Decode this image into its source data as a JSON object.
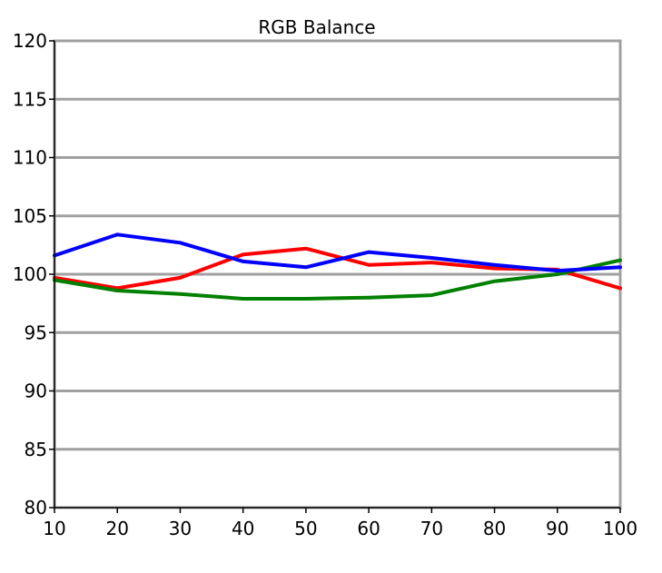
{
  "chart_data": {
    "type": "line",
    "title": "RGB Balance",
    "xlabel": "",
    "ylabel": "",
    "x": [
      10,
      20,
      30,
      40,
      50,
      60,
      70,
      80,
      90,
      100
    ],
    "xlim": [
      10,
      100
    ],
    "ylim": [
      80,
      120
    ],
    "yticks": [
      80,
      85,
      90,
      95,
      100,
      105,
      110,
      115,
      120
    ],
    "grid": true,
    "legend": "none",
    "series": [
      {
        "color": "#ff0000",
        "values": [
          99.7,
          98.8,
          99.7,
          101.7,
          102.2,
          100.8,
          101.0,
          100.5,
          100.4,
          98.8
        ]
      },
      {
        "color": "#008000",
        "values": [
          99.5,
          98.6,
          98.3,
          97.9,
          97.9,
          98.0,
          98.2,
          99.4,
          100.0,
          101.2
        ]
      },
      {
        "color": "#0000ff",
        "values": [
          101.6,
          103.4,
          102.7,
          101.1,
          100.6,
          101.9,
          101.4,
          100.8,
          100.3,
          100.6
        ]
      }
    ]
  }
}
